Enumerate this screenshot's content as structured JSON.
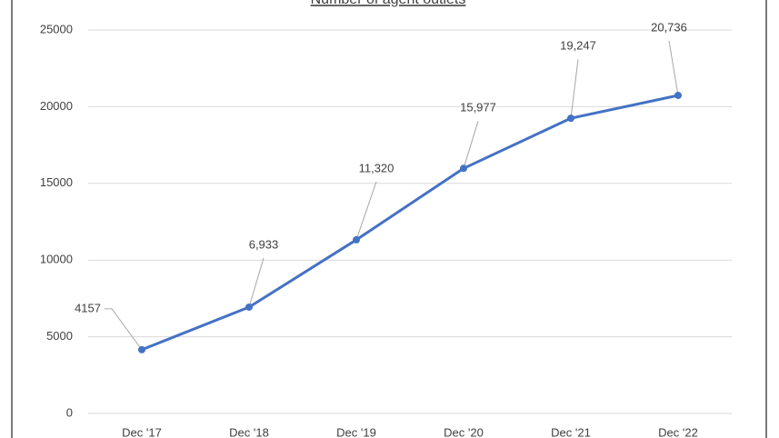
{
  "chart_data": {
    "type": "line",
    "title": "Number of agent outlets",
    "categories": [
      "Dec '17",
      "Dec '18",
      "Dec '19",
      "Dec '20",
      "Dec '21",
      "Dec '22"
    ],
    "series": [
      {
        "name": "Number of agent outlets",
        "color": "#4472c4",
        "values": [
          4157,
          6933,
          11320,
          15977,
          19247,
          20736
        ],
        "value_labels": [
          "4157",
          "6,933",
          "11,320",
          "15,977",
          "19,247",
          "20,736"
        ]
      }
    ],
    "ylim": [
      0,
      25000
    ],
    "yticks": [
      0,
      5000,
      10000,
      15000,
      20000,
      25000
    ],
    "grid": true
  }
}
